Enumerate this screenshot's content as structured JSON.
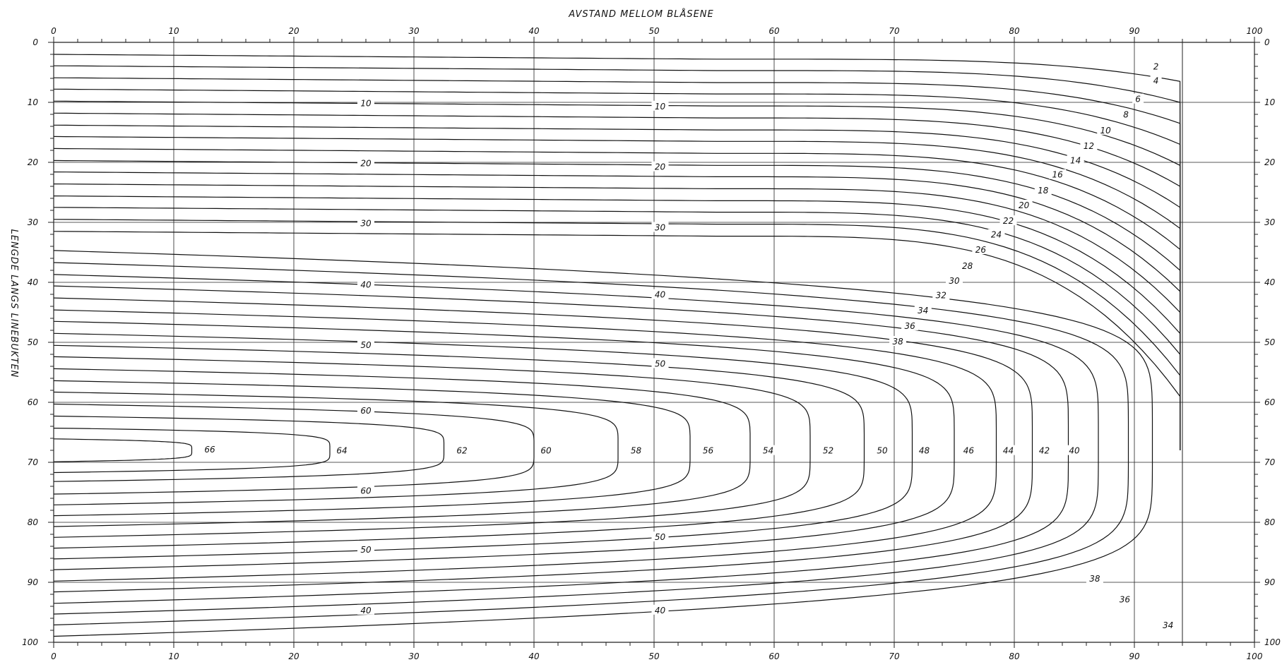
{
  "chart_data": {
    "type": "contour",
    "title": "AVSTAND MELLOM BLÅSENE",
    "xlabel": "AVSTAND MELLOM BLÅSENE",
    "ylabel": "LENGDE LANGS LINEBUKTEN",
    "xlim": [
      0,
      100
    ],
    "ylim": [
      0,
      100
    ],
    "y_axis_inverted": true,
    "x_ticks": [
      "0",
      "10",
      "20",
      "30",
      "40",
      "50",
      "60",
      "70",
      "80",
      "90",
      "100"
    ],
    "y_ticks": [
      "0",
      "10",
      "20",
      "30",
      "40",
      "50",
      "60",
      "70",
      "80",
      "90",
      "100"
    ],
    "grid": true,
    "apex": {
      "x": 94,
      "y": 68
    },
    "contour_levels": [
      2,
      4,
      6,
      8,
      10,
      12,
      14,
      16,
      18,
      20,
      22,
      24,
      26,
      28,
      30,
      32,
      34,
      36,
      38,
      40,
      42,
      44,
      46,
      48,
      50,
      52,
      54,
      56,
      58,
      60,
      62,
      64,
      66
    ],
    "nested_contours": [
      {
        "label": "66",
        "tip_x": 11.5,
        "y_top": 66.1,
        "y_bottom": 69.9
      },
      {
        "label": "64",
        "tip_x": 23,
        "y_top": 64.3,
        "y_bottom": 71.7
      },
      {
        "label": "62",
        "tip_x": 32.5,
        "y_top": 62.3,
        "y_bottom": 73.2
      },
      {
        "label": "60",
        "tip_x": 40,
        "y_top": 60.3,
        "y_bottom": 75.3
      },
      {
        "label": "58",
        "tip_x": 47,
        "y_top": 58.3,
        "y_bottom": 77.1
      },
      {
        "label": "56",
        "tip_x": 53,
        "y_top": 56.4,
        "y_bottom": 78.9
      },
      {
        "label": "54",
        "tip_x": 58,
        "y_top": 54.4,
        "y_bottom": 80.7
      },
      {
        "label": "52",
        "tip_x": 63,
        "y_top": 52.4,
        "y_bottom": 82.5
      },
      {
        "label": "50",
        "tip_x": 67.5,
        "y_top": 50.5,
        "y_bottom": 84.3
      },
      {
        "label": "48",
        "tip_x": 71.5,
        "y_top": 48.5,
        "y_bottom": 86.1
      },
      {
        "label": "46",
        "tip_x": 75,
        "y_top": 46.5,
        "y_bottom": 87.9
      },
      {
        "label": "44",
        "tip_x": 78.5,
        "y_top": 44.6,
        "y_bottom": 89.8
      },
      {
        "label": "42",
        "tip_x": 81.5,
        "y_top": 42.6,
        "y_bottom": 91.6
      },
      {
        "label": "40",
        "tip_x": 84.5,
        "y_top": 40.6,
        "y_bottom": 93.5
      },
      {
        "label": "38",
        "tip_x": 87,
        "y_top": 38.7,
        "y_bottom": 95.3
      },
      {
        "label": "36",
        "tip_x": 89.5,
        "y_top": 36.7,
        "y_bottom": 97.1
      },
      {
        "label": "34",
        "tip_x": 91.5,
        "y_top": 34.7,
        "y_bottom": 99
      }
    ],
    "corner_contours": [
      {
        "label": "2",
        "y_left": 2,
        "x_end": 93.8,
        "y_end": 6.5
      },
      {
        "label": "4",
        "y_left": 3.9,
        "x_end": 93.8,
        "y_end": 10
      },
      {
        "label": "6",
        "y_left": 5.9,
        "x_end": 93.8,
        "y_end": 13.5
      },
      {
        "label": "8",
        "y_left": 7.8,
        "x_end": 93.8,
        "y_end": 17
      },
      {
        "label": "10",
        "y_left": 9.8,
        "x_end": 93.8,
        "y_end": 20.5
      },
      {
        "label": "12",
        "y_left": 11.8,
        "x_end": 93.8,
        "y_end": 24
      },
      {
        "label": "14",
        "y_left": 13.8,
        "x_end": 93.8,
        "y_end": 27.5
      },
      {
        "label": "16",
        "y_left": 15.7,
        "x_end": 93.8,
        "y_end": 31
      },
      {
        "label": "18",
        "y_left": 17.7,
        "x_end": 93.8,
        "y_end": 34.5
      },
      {
        "label": "20",
        "y_left": 19.7,
        "x_end": 93.8,
        "y_end": 38
      },
      {
        "label": "22",
        "y_left": 21.6,
        "x_end": 93.8,
        "y_end": 41.5
      },
      {
        "label": "24",
        "y_left": 23.6,
        "x_end": 93.8,
        "y_end": 45
      },
      {
        "label": "26",
        "y_left": 25.6,
        "x_end": 93.8,
        "y_end": 48.5
      },
      {
        "label": "28",
        "y_left": 27.5,
        "x_end": 93.8,
        "y_end": 52
      },
      {
        "label": "30",
        "y_left": 29.5,
        "x_end": 93.8,
        "y_end": 55.5
      },
      {
        "label": "32",
        "y_left": 31.5,
        "x_end": 93.8,
        "y_end": 59
      }
    ],
    "contour_annotations": [
      {
        "text": "2",
        "x": 91.8,
        "y": 4.2
      },
      {
        "text": "4",
        "x": 91.8,
        "y": 6.5
      },
      {
        "text": "6",
        "x": 90.3,
        "y": 9.6
      },
      {
        "text": "8",
        "x": 89.3,
        "y": 12.2
      },
      {
        "text": "10",
        "x": 87.6,
        "y": 14.8
      },
      {
        "text": "12",
        "x": 86.2,
        "y": 17.4
      },
      {
        "text": "14",
        "x": 85.1,
        "y": 19.8
      },
      {
        "text": "16",
        "x": 83.6,
        "y": 22.2
      },
      {
        "text": "18",
        "x": 82.4,
        "y": 24.8
      },
      {
        "text": "20",
        "x": 80.8,
        "y": 27.3
      },
      {
        "text": "22",
        "x": 79.5,
        "y": 29.9
      },
      {
        "text": "24",
        "x": 78.5,
        "y": 32.2
      },
      {
        "text": "26",
        "x": 77.2,
        "y": 34.7
      },
      {
        "text": "28",
        "x": 76.1,
        "y": 37.4
      },
      {
        "text": "30",
        "x": 75,
        "y": 39.9
      },
      {
        "text": "32",
        "x": 73.9,
        "y": 42.3
      },
      {
        "text": "34",
        "x": 72.4,
        "y": 44.8
      },
      {
        "text": "36",
        "x": 71.3,
        "y": 47.4
      },
      {
        "text": "38",
        "x": 70.3,
        "y": 50
      },
      {
        "text": "10",
        "x": 26,
        "y": 10.3
      },
      {
        "text": "10",
        "x": 50.5,
        "y": 10.8
      },
      {
        "text": "20",
        "x": 26,
        "y": 20.3
      },
      {
        "text": "20",
        "x": 50.5,
        "y": 20.9
      },
      {
        "text": "30",
        "x": 26,
        "y": 30.3
      },
      {
        "text": "30",
        "x": 50.5,
        "y": 31
      },
      {
        "text": "40",
        "x": 26,
        "y": 40.5
      },
      {
        "text": "40",
        "x": 50.5,
        "y": 42.2
      },
      {
        "text": "50",
        "x": 26,
        "y": 50.6
      },
      {
        "text": "50",
        "x": 50.5,
        "y": 53.7
      },
      {
        "text": "60",
        "x": 26,
        "y": 61.5
      },
      {
        "text": "66",
        "x": 13,
        "y": 68
      },
      {
        "text": "64",
        "x": 24,
        "y": 68.2
      },
      {
        "text": "62",
        "x": 34,
        "y": 68.2
      },
      {
        "text": "60",
        "x": 41,
        "y": 68.2
      },
      {
        "text": "58",
        "x": 48.5,
        "y": 68.2
      },
      {
        "text": "56",
        "x": 54.5,
        "y": 68.2
      },
      {
        "text": "54",
        "x": 59.5,
        "y": 68.2
      },
      {
        "text": "52",
        "x": 64.5,
        "y": 68.2
      },
      {
        "text": "50",
        "x": 69,
        "y": 68.2
      },
      {
        "text": "48",
        "x": 72.5,
        "y": 68.2
      },
      {
        "text": "46",
        "x": 76.2,
        "y": 68.2
      },
      {
        "text": "44",
        "x": 79.5,
        "y": 68.2
      },
      {
        "text": "42",
        "x": 82.5,
        "y": 68.2
      },
      {
        "text": "40",
        "x": 85,
        "y": 68.2
      },
      {
        "text": "60",
        "x": 26,
        "y": 74.9
      },
      {
        "text": "50",
        "x": 50.5,
        "y": 82.6
      },
      {
        "text": "50",
        "x": 26,
        "y": 84.7
      },
      {
        "text": "40",
        "x": 26,
        "y": 94.8
      },
      {
        "text": "40",
        "x": 50.5,
        "y": 94.8
      },
      {
        "text": "38",
        "x": 86.7,
        "y": 89.5
      },
      {
        "text": "36",
        "x": 89.2,
        "y": 93
      },
      {
        "text": "34",
        "x": 92.8,
        "y": 97.3
      }
    ]
  }
}
